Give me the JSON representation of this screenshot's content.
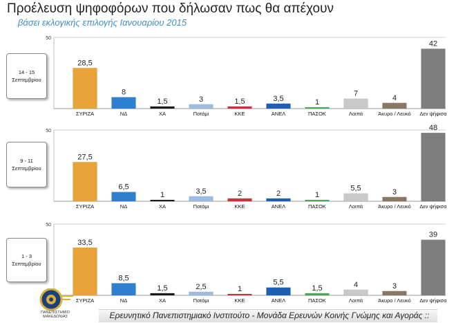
{
  "title": "Προέλευση ψηφοφόρων που δήλωσαν πως θα απέχουν",
  "subtitle": "βάσει εκλογικής επιλογής Ιανουαρίου 2015",
  "footer": "Ερευνητικό Πανεπιστημιακό Ινστιτούτο - Μονάδα Ερευνών Κοινής Γνώμης και Αγοράς ::",
  "logo_text": [
    "ΠΑΝΕΠΙΣΤΗΜΙΟ",
    "ΜΑΚΕΔΟΝΙΑΣ"
  ],
  "colors": [
    "#e8a33a",
    "#2f7fd1",
    "#1a1a1a",
    "#9dbde0",
    "#c8323a",
    "#1e5fb3",
    "#4fa65a",
    "#c9c9c9",
    "#8a7866",
    "#7d7d7d"
  ],
  "chart_data": [
    {
      "type": "bar",
      "period": [
        "14 - 15",
        "Σεπτεμβρίου"
      ],
      "categories": [
        "ΣΥΡΙΖΑ",
        "ΝΔ",
        "ΧΑ",
        "Ποτάμι",
        "ΚΚΕ",
        "ΑΝΕΛ",
        "ΠΑΣΟΚ",
        "Λοιπά",
        "Άκυρο / Λευκό",
        "Δεν ψήφισα"
      ],
      "values": [
        28.5,
        8,
        1.5,
        3,
        1.5,
        3.5,
        1,
        7,
        4,
        42
      ],
      "labels": [
        "28,5",
        "8",
        "1,5",
        "3",
        "1,5",
        "3,5",
        "1",
        "7",
        "4",
        "42"
      ],
      "ylim": [
        0,
        50
      ],
      "yticks": [
        "50"
      ]
    },
    {
      "type": "bar",
      "period": [
        "9 - 11",
        "Σεπτεμβρίου"
      ],
      "categories": [
        "ΣΥΡΙΖΑ",
        "ΝΔ",
        "ΧΑ",
        "Ποτάμι",
        "ΚΚΕ",
        "ΑΝΕΛ",
        "ΠΑΣΟΚ",
        "Λοιπά",
        "Άκυρο / Λευκό",
        "Δεν ψήφισα"
      ],
      "values": [
        27.5,
        6.5,
        1,
        3.5,
        2,
        2,
        1,
        5.5,
        3,
        48
      ],
      "labels": [
        "27,5",
        "6,5",
        "1",
        "3,5",
        "2",
        "2",
        "1",
        "5,5",
        "3",
        "48"
      ],
      "ylim": [
        0,
        50
      ],
      "yticks": [
        "50"
      ]
    },
    {
      "type": "bar",
      "period": [
        "1 - 3",
        "Σεπτεμβρίου"
      ],
      "categories": [
        "ΣΥΡΙΖΑ",
        "ΝΔ",
        "ΧΑ",
        "Ποτάμι",
        "ΚΚΕ",
        "ΑΝΕΛ",
        "ΠΑΣΟΚ",
        "Λοιπά",
        "Άκυρο / Λευκό",
        "Δεν ψήφισα"
      ],
      "values": [
        33.5,
        8.5,
        1.5,
        2.5,
        1,
        5.5,
        1.5,
        4,
        3,
        39
      ],
      "labels": [
        "33,5",
        "8,5",
        "1,5",
        "2,5",
        "1",
        "5,5",
        "1,5",
        "4",
        "3",
        "39"
      ],
      "ylim": [
        0,
        50
      ],
      "yticks": [
        "50"
      ]
    }
  ]
}
